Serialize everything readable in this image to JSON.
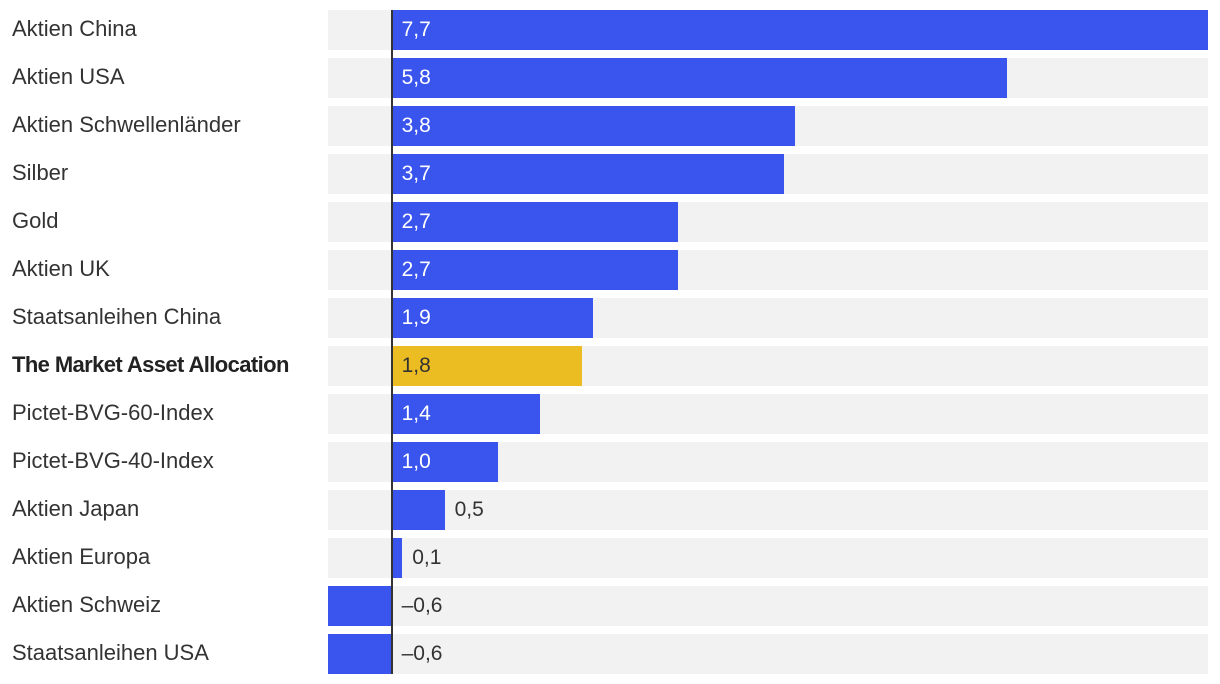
{
  "chart_data": {
    "type": "bar",
    "orientation": "horizontal",
    "categories": [
      "Aktien China",
      "Aktien USA",
      "Aktien Schwellenländer",
      "Silber",
      "Gold",
      "Aktien UK",
      "Staatsanleihen China",
      "The Market Asset Allocation",
      "Pictet-BVG-60-Index",
      "Pictet-BVG-40-Index",
      "Aktien Japan",
      "Aktien Europa",
      "Aktien Schweiz",
      "Staatsanleihen USA"
    ],
    "values": [
      7.7,
      5.8,
      3.8,
      3.7,
      2.7,
      2.7,
      1.9,
      1.8,
      1.4,
      1.0,
      0.5,
      0.1,
      -0.6,
      -0.6
    ],
    "value_labels": [
      "7,7",
      "5,8",
      "3,8",
      "3,7",
      "2,7",
      "2,7",
      "1,9",
      "1,8",
      "1,4",
      "1,0",
      "0,5",
      "0,1",
      "–0,6",
      "–0,6"
    ],
    "highlight_category": "The Market Asset Allocation",
    "xlim": [
      -0.6,
      7.7
    ],
    "title": "",
    "xlabel": "",
    "ylabel": "",
    "grid": false,
    "colors": {
      "bar": "#3a55ee",
      "highlight": "#ecbd22",
      "track": "#f2f2f2",
      "axis": "#333333"
    }
  }
}
